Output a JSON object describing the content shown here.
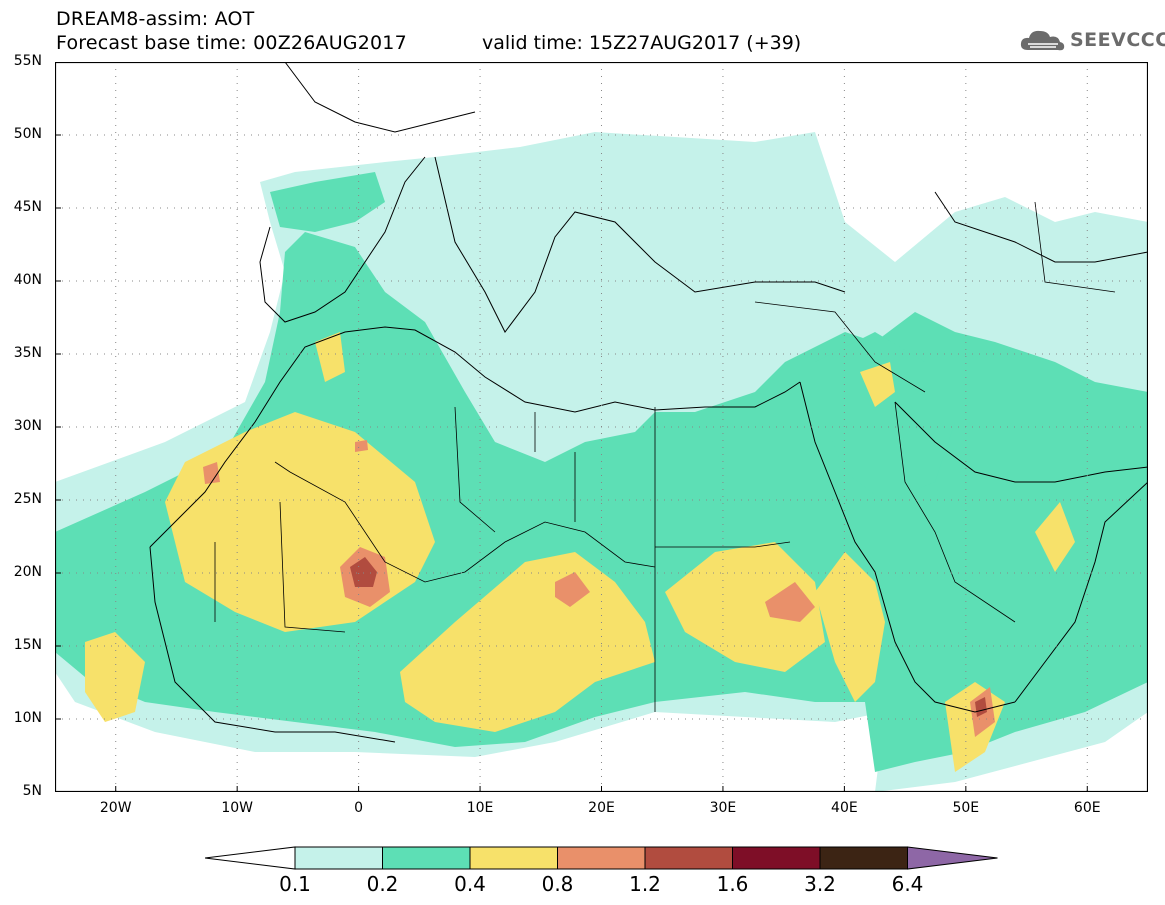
{
  "header": {
    "line1": "DREAM8-assim: AOT",
    "line2": "Forecast base time: 00Z26AUG2017",
    "valid": "valid time: 15Z27AUG2017 (+39)"
  },
  "logo": {
    "text": "SEEVCCC",
    "icon": "cloud-logo-icon"
  },
  "map": {
    "projection": "lat-lon",
    "lon_range": [
      -25,
      65
    ],
    "lat_range": [
      5,
      55
    ],
    "lat_ticks": [
      {
        "value": 55,
        "label": "55N"
      },
      {
        "value": 50,
        "label": "50N"
      },
      {
        "value": 45,
        "label": "45N"
      },
      {
        "value": 40,
        "label": "40N"
      },
      {
        "value": 35,
        "label": "35N"
      },
      {
        "value": 30,
        "label": "30N"
      },
      {
        "value": 25,
        "label": "25N"
      },
      {
        "value": 20,
        "label": "20N"
      },
      {
        "value": 15,
        "label": "15N"
      },
      {
        "value": 10,
        "label": "10N"
      },
      {
        "value": 5,
        "label": "5N"
      }
    ],
    "lon_ticks": [
      {
        "value": -20,
        "label": "20W"
      },
      {
        "value": -10,
        "label": "10W"
      },
      {
        "value": 0,
        "label": "0"
      },
      {
        "value": 10,
        "label": "10E"
      },
      {
        "value": 20,
        "label": "20E"
      },
      {
        "value": 30,
        "label": "30E"
      },
      {
        "value": 40,
        "label": "40E"
      },
      {
        "value": 50,
        "label": "50E"
      },
      {
        "value": 60,
        "label": "60E"
      }
    ],
    "grid": "dotted"
  },
  "colorbar": {
    "levels": [
      "0.1",
      "0.2",
      "0.4",
      "0.8",
      "1.2",
      "1.6",
      "3.2",
      "6.4"
    ],
    "colors": [
      "#ffffff",
      "#c5f2ea",
      "#5ddfb5",
      "#f7e16a",
      "#e9906a",
      "#b14c3f",
      "#7e0e27",
      "#3c2414",
      "#8e67a6"
    ]
  }
}
